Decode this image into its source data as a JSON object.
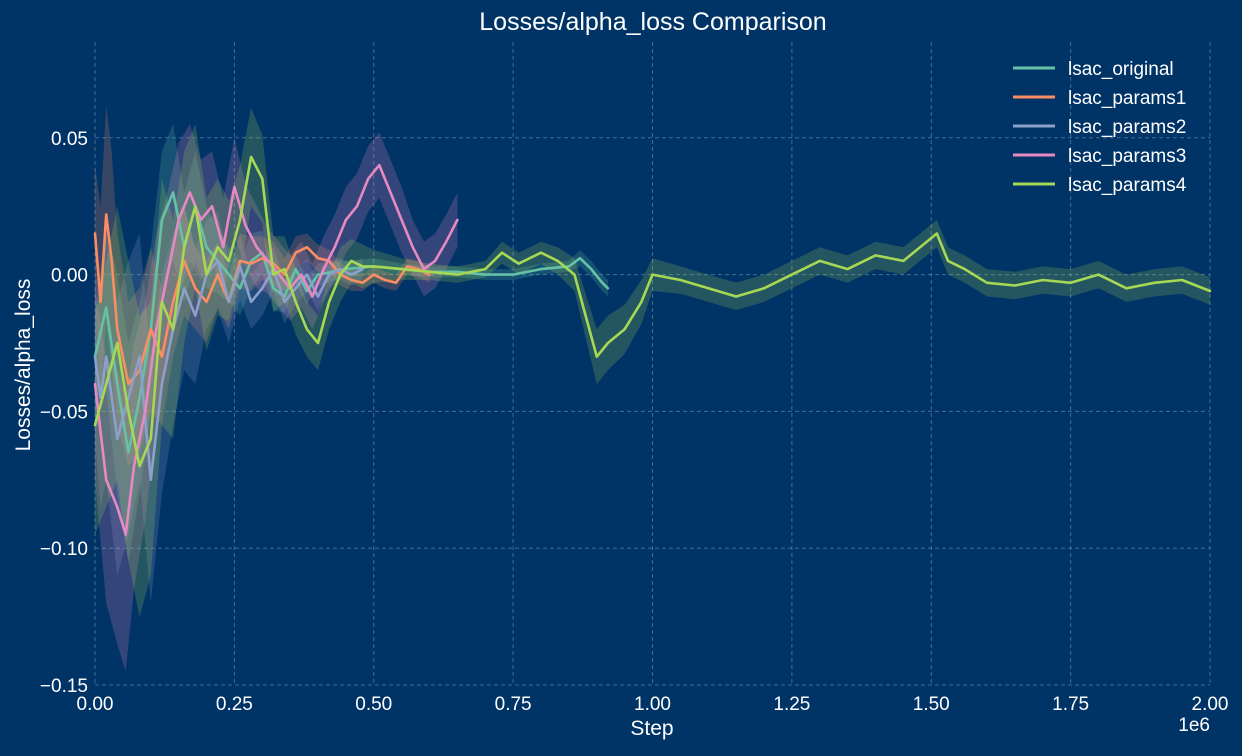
{
  "colors": {
    "background": "#003366",
    "grid": "#7f9bb8",
    "text": "#ffffff"
  },
  "chart_data": {
    "type": "line",
    "title": "Losses/alpha_loss Comparison",
    "xlabel": "Step",
    "ylabel": "Losses/alpha_loss",
    "x_scale_label": "1e6",
    "xlim": [
      0,
      2000000
    ],
    "ylim": [
      -0.15,
      0.085
    ],
    "grid": true,
    "legend_position": "top-right",
    "x_ticks": [
      0,
      250000,
      500000,
      750000,
      1000000,
      1250000,
      1500000,
      1750000,
      2000000
    ],
    "x_tick_labels": [
      "0.00",
      "0.25",
      "0.50",
      "0.75",
      "1.00",
      "1.25",
      "1.50",
      "1.75",
      "2.00"
    ],
    "y_ticks": [
      -0.15,
      -0.1,
      -0.05,
      0.0,
      0.05
    ],
    "y_tick_labels": [
      "−0.15",
      "−0.10",
      "−0.05",
      "0.00",
      "0.05"
    ],
    "series": [
      {
        "name": "lsac_original",
        "color": "#66c2a5",
        "x": [
          0,
          20000,
          40000,
          60000,
          80000,
          100000,
          120000,
          140000,
          160000,
          180000,
          200000,
          220000,
          240000,
          260000,
          280000,
          300000,
          320000,
          340000,
          360000,
          380000,
          400000,
          450000,
          500000,
          550000,
          600000,
          650000,
          700000,
          750000,
          800000,
          850000,
          870000,
          890000,
          910000,
          920000
        ],
        "y": [
          -0.03,
          -0.012,
          -0.04,
          -0.065,
          -0.045,
          -0.02,
          0.02,
          0.03,
          0.01,
          0.025,
          0.01,
          0.005,
          0.0,
          -0.005,
          0.005,
          0.008,
          -0.005,
          -0.008,
          0.002,
          -0.006,
          0.0,
          0.002,
          0.003,
          0.002,
          0.001,
          0.001,
          0.0,
          0.0,
          0.002,
          0.003,
          0.006,
          0.002,
          -0.003,
          -0.005
        ],
        "band": [
          0.015,
          0.03,
          0.04,
          0.04,
          0.035,
          0.03,
          0.025,
          0.025,
          0.02,
          0.02,
          0.015,
          0.012,
          0.01,
          0.01,
          0.01,
          0.008,
          0.008,
          0.006,
          0.005,
          0.005,
          0.004,
          0.003,
          0.003,
          0.002,
          0.002,
          0.002,
          0.002,
          0.002,
          0.002,
          0.002,
          0.003,
          0.003,
          0.003,
          0.003
        ]
      },
      {
        "name": "lsac_params1",
        "color": "#fc8d62",
        "x": [
          0,
          10000,
          20000,
          30000,
          40000,
          60000,
          80000,
          100000,
          120000,
          140000,
          160000,
          180000,
          200000,
          220000,
          240000,
          260000,
          280000,
          300000,
          320000,
          340000,
          360000,
          380000,
          400000,
          420000,
          440000,
          460000,
          480000,
          500000,
          520000,
          540000,
          560000,
          580000,
          600000
        ],
        "y": [
          0.015,
          -0.01,
          0.022,
          0.005,
          -0.02,
          -0.04,
          -0.035,
          -0.02,
          -0.03,
          -0.01,
          0.005,
          -0.005,
          -0.01,
          0.0,
          -0.01,
          0.005,
          0.004,
          0.006,
          0.004,
          0.0,
          0.008,
          0.01,
          0.006,
          0.005,
          0.0,
          -0.002,
          -0.003,
          0.0,
          -0.002,
          -0.003,
          0.003,
          0.002,
          0.0
        ],
        "band": [
          0.025,
          0.035,
          0.04,
          0.04,
          0.035,
          0.03,
          0.03,
          0.03,
          0.025,
          0.02,
          0.02,
          0.015,
          0.015,
          0.012,
          0.01,
          0.01,
          0.01,
          0.008,
          0.008,
          0.006,
          0.006,
          0.005,
          0.005,
          0.004,
          0.004,
          0.004,
          0.003,
          0.003,
          0.003,
          0.003,
          0.003,
          0.003,
          0.003
        ]
      },
      {
        "name": "lsac_params2",
        "color": "#8da0cb",
        "x": [
          0,
          10000,
          20000,
          40000,
          60000,
          80000,
          100000,
          120000,
          140000,
          160000,
          180000,
          200000,
          220000,
          240000,
          260000,
          280000,
          300000,
          320000,
          340000,
          360000,
          380000,
          400000,
          420000,
          440000,
          460000,
          480000
        ],
        "y": [
          -0.03,
          -0.045,
          -0.03,
          -0.06,
          -0.045,
          -0.03,
          -0.075,
          -0.04,
          -0.02,
          -0.005,
          -0.015,
          0.0,
          0.005,
          -0.01,
          0.003,
          -0.01,
          -0.005,
          0.002,
          -0.01,
          -0.005,
          0.0,
          -0.008,
          0.0,
          0.002,
          0.0,
          0.002
        ],
        "band": [
          0.03,
          0.04,
          0.045,
          0.05,
          0.05,
          0.045,
          0.045,
          0.04,
          0.035,
          0.03,
          0.025,
          0.02,
          0.018,
          0.015,
          0.012,
          0.01,
          0.01,
          0.008,
          0.008,
          0.006,
          0.006,
          0.005,
          0.005,
          0.004,
          0.004,
          0.004
        ]
      },
      {
        "name": "lsac_params3",
        "color": "#e78ac3",
        "x": [
          0,
          20000,
          40000,
          55000,
          70000,
          90000,
          110000,
          130000,
          150000,
          170000,
          190000,
          210000,
          230000,
          250000,
          270000,
          290000,
          310000,
          330000,
          350000,
          370000,
          390000,
          410000,
          430000,
          450000,
          470000,
          490000,
          510000,
          530000,
          550000,
          570000,
          590000,
          610000,
          630000,
          650000
        ],
        "y": [
          -0.04,
          -0.075,
          -0.085,
          -0.095,
          -0.07,
          -0.05,
          -0.02,
          0.0,
          0.02,
          0.03,
          0.02,
          0.025,
          0.01,
          0.032,
          0.018,
          0.01,
          0.005,
          0.0,
          -0.005,
          0.0,
          -0.008,
          0.002,
          0.01,
          0.02,
          0.025,
          0.035,
          0.04,
          0.03,
          0.02,
          0.01,
          0.002,
          0.005,
          0.012,
          0.02
        ],
        "band": [
          0.035,
          0.045,
          0.05,
          0.05,
          0.045,
          0.04,
          0.035,
          0.03,
          0.028,
          0.025,
          0.022,
          0.02,
          0.018,
          0.018,
          0.015,
          0.015,
          0.012,
          0.012,
          0.012,
          0.012,
          0.012,
          0.012,
          0.012,
          0.012,
          0.012,
          0.012,
          0.012,
          0.012,
          0.012,
          0.01,
          0.01,
          0.01,
          0.01,
          0.01
        ]
      },
      {
        "name": "lsac_params4",
        "color": "#a6d854",
        "x": [
          0,
          20000,
          40000,
          60000,
          80000,
          100000,
          120000,
          140000,
          160000,
          180000,
          200000,
          220000,
          240000,
          260000,
          280000,
          300000,
          320000,
          340000,
          360000,
          380000,
          400000,
          420000,
          440000,
          460000,
          480000,
          500000,
          550000,
          600000,
          650000,
          700000,
          730000,
          760000,
          800000,
          830000,
          860000,
          880000,
          900000,
          920000,
          950000,
          980000,
          1000000,
          1050000,
          1100000,
          1150000,
          1200000,
          1250000,
          1300000,
          1350000,
          1400000,
          1450000,
          1480000,
          1510000,
          1530000,
          1560000,
          1600000,
          1650000,
          1700000,
          1750000,
          1800000,
          1850000,
          1900000,
          1950000,
          2000000
        ],
        "y": [
          -0.055,
          -0.04,
          -0.025,
          -0.05,
          -0.07,
          -0.06,
          -0.01,
          -0.02,
          0.01,
          0.025,
          0.0,
          0.01,
          0.005,
          0.02,
          0.043,
          0.035,
          0.0,
          0.002,
          -0.01,
          -0.02,
          -0.025,
          -0.01,
          0.0,
          0.005,
          0.003,
          0.003,
          0.002,
          0.001,
          0.0,
          0.002,
          0.008,
          0.004,
          0.008,
          0.005,
          0.0,
          -0.015,
          -0.03,
          -0.025,
          -0.02,
          -0.01,
          0.0,
          -0.002,
          -0.005,
          -0.008,
          -0.005,
          0.0,
          0.005,
          0.002,
          0.007,
          0.005,
          0.01,
          0.015,
          0.005,
          0.002,
          -0.003,
          -0.004,
          -0.002,
          -0.003,
          0.0,
          -0.005,
          -0.003,
          -0.002,
          -0.006
        ],
        "band": [
          0.04,
          0.045,
          0.05,
          0.055,
          0.055,
          0.05,
          0.045,
          0.04,
          0.035,
          0.03,
          0.028,
          0.025,
          0.022,
          0.02,
          0.018,
          0.016,
          0.014,
          0.012,
          0.012,
          0.01,
          0.01,
          0.01,
          0.01,
          0.008,
          0.008,
          0.006,
          0.004,
          0.003,
          0.003,
          0.003,
          0.004,
          0.004,
          0.004,
          0.005,
          0.006,
          0.008,
          0.01,
          0.01,
          0.009,
          0.008,
          0.006,
          0.005,
          0.005,
          0.005,
          0.005,
          0.005,
          0.005,
          0.005,
          0.005,
          0.005,
          0.005,
          0.005,
          0.005,
          0.005,
          0.005,
          0.005,
          0.005,
          0.005,
          0.005,
          0.005,
          0.005,
          0.005,
          0.005
        ]
      }
    ]
  }
}
